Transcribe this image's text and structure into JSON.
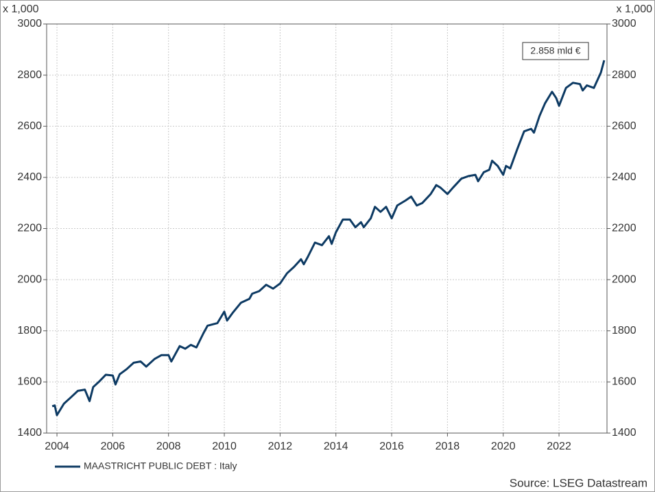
{
  "chart_data": {
    "type": "line",
    "y_unit_label": "x 1,000",
    "annotation": "2.858 mld €",
    "source": "Source: LSEG Datastream",
    "xlim": [
      2003.63,
      2023.72
    ],
    "xticks": [
      2004,
      2006,
      2008,
      2010,
      2012,
      2014,
      2016,
      2018,
      2020,
      2022
    ],
    "ylim": [
      1400,
      3000
    ],
    "yticks": [
      1400,
      1600,
      1800,
      2000,
      2200,
      2400,
      2600,
      2800,
      3000
    ],
    "grid": true,
    "x": [
      2003.83,
      2003.92,
      2004.0,
      2004.25,
      2004.5,
      2004.75,
      2005.0,
      2005.17,
      2005.3,
      2005.5,
      2005.75,
      2006.0,
      2006.1,
      2006.25,
      2006.5,
      2006.75,
      2007.0,
      2007.2,
      2007.5,
      2007.75,
      2008.0,
      2008.1,
      2008.4,
      2008.6,
      2008.8,
      2009.0,
      2009.25,
      2009.4,
      2009.75,
      2010.0,
      2010.1,
      2010.3,
      2010.6,
      2010.9,
      2011.0,
      2011.25,
      2011.5,
      2011.75,
      2012.0,
      2012.25,
      2012.5,
      2012.75,
      2012.85,
      2013.0,
      2013.25,
      2013.5,
      2013.75,
      2013.85,
      2014.0,
      2014.25,
      2014.5,
      2014.7,
      2014.9,
      2015.0,
      2015.25,
      2015.4,
      2015.6,
      2015.8,
      2016.0,
      2016.2,
      2016.5,
      2016.7,
      2016.9,
      2017.1,
      2017.4,
      2017.6,
      2017.75,
      2018.0,
      2018.2,
      2018.5,
      2018.75,
      2019.0,
      2019.1,
      2019.3,
      2019.5,
      2019.6,
      2019.8,
      2020.0,
      2020.1,
      2020.25,
      2020.5,
      2020.75,
      2021.0,
      2021.1,
      2021.3,
      2021.5,
      2021.75,
      2021.9,
      2022.0,
      2022.25,
      2022.5,
      2022.75,
      2022.85,
      2023.0,
      2023.25,
      2023.5,
      2023.62
    ],
    "series": [
      {
        "name": "MAASTRICHT PUBLIC DEBT : Italy",
        "color": "#0d3a63",
        "values": [
          1505,
          1508,
          1470,
          1515,
          1540,
          1565,
          1570,
          1525,
          1580,
          1600,
          1628,
          1625,
          1590,
          1630,
          1650,
          1675,
          1680,
          1660,
          1690,
          1705,
          1705,
          1680,
          1740,
          1730,
          1745,
          1735,
          1790,
          1820,
          1830,
          1875,
          1840,
          1870,
          1910,
          1925,
          1945,
          1955,
          1980,
          1965,
          1985,
          2025,
          2050,
          2080,
          2060,
          2090,
          2145,
          2135,
          2170,
          2140,
          2185,
          2235,
          2235,
          2205,
          2225,
          2205,
          2240,
          2285,
          2265,
          2285,
          2240,
          2290,
          2310,
          2325,
          2290,
          2300,
          2335,
          2370,
          2360,
          2335,
          2360,
          2395,
          2405,
          2410,
          2385,
          2420,
          2430,
          2465,
          2445,
          2410,
          2445,
          2435,
          2510,
          2580,
          2590,
          2575,
          2640,
          2690,
          2735,
          2710,
          2680,
          2750,
          2770,
          2765,
          2740,
          2760,
          2750,
          2810,
          2858
        ]
      }
    ]
  }
}
